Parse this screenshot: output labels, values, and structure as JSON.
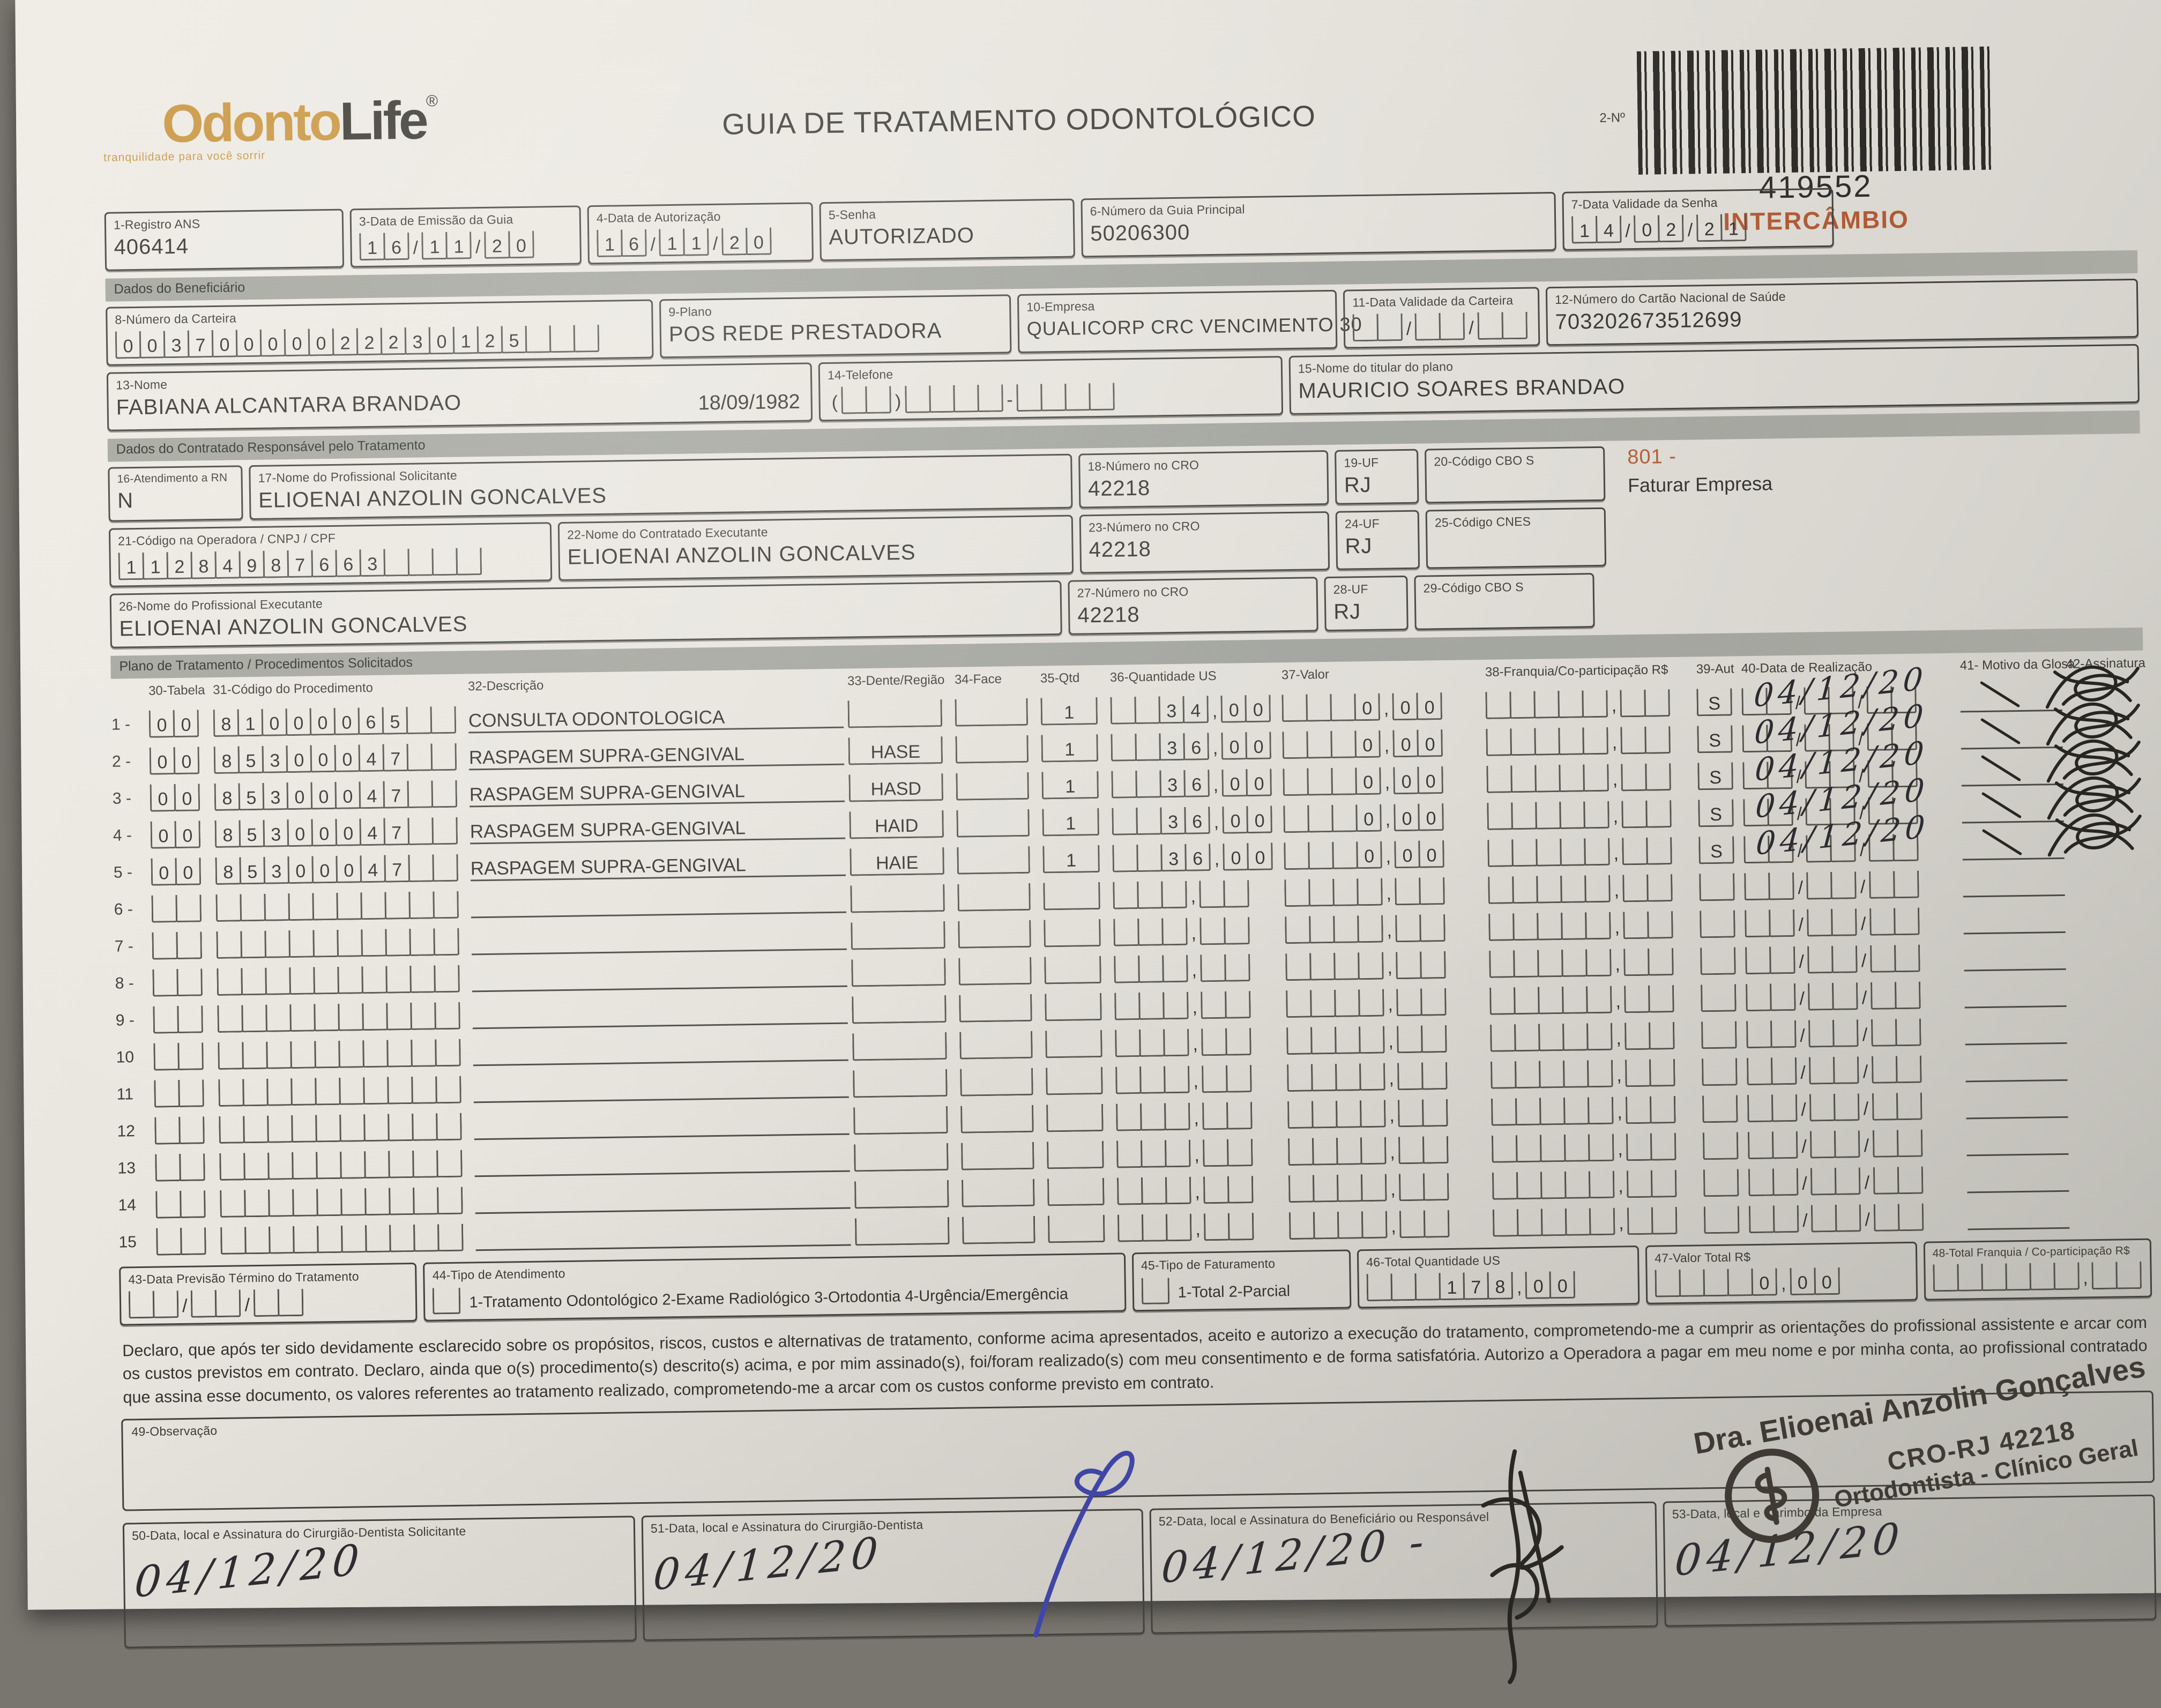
{
  "header": {
    "logo_odonto": "Odonto",
    "logo_life": "Life",
    "logo_reg": "®",
    "tagline": "tranquilidade para você sorrir",
    "title": "GUIA DE TRATAMENTO ODONTOLÓGICO",
    "barcode_label": "2-Nº",
    "guide_number": "419552",
    "guide_type": "INTERCÂMBIO"
  },
  "colors": {
    "logo_orange": "#c9953f",
    "accent_red": "#b05a36",
    "pen_blue": "#3f46ad",
    "ink": "#3b3a35"
  },
  "sections": {
    "beneficiario": "Dados do Beneficiário",
    "contratado": "Dados do Contratado Responsável pelo Tratamento",
    "plano": "Plano de Tratamento / Procedimentos Solicitados"
  },
  "fields": {
    "f1": {
      "label": "1-Registro ANS",
      "value": "406414"
    },
    "f3": {
      "label": "3-Data de Emissão da Guia",
      "value": "16/11/20"
    },
    "f4": {
      "label": "4-Data de Autorização",
      "value": "16/11/20"
    },
    "f5": {
      "label": "5-Senha",
      "value": "AUTORIZADO"
    },
    "f6": {
      "label": "6-Número da Guia Principal",
      "value": "50206300"
    },
    "f7": {
      "label": "7-Data Validade da Senha",
      "value": "14/02/21"
    },
    "f8": {
      "label": "8-Número da Carteira",
      "value": "00370000022230125   "
    },
    "f9": {
      "label": "9-Plano",
      "value": "POS REDE PRESTADORA"
    },
    "f10": {
      "label": "10-Empresa",
      "value": "QUALICORP CRC VENCIMENTO 30"
    },
    "f11": {
      "label": "11-Data Validade da Carteira",
      "value": "  /  /  "
    },
    "f12": {
      "label": "12-Número do Cartão Nacional de Saúde",
      "value": "703202673512699"
    },
    "f13": {
      "label": "13-Nome",
      "value": "FABIANA ALCANTARA BRANDAO",
      "birthdate": "18/09/1982"
    },
    "f14": {
      "label": "14-Telefone",
      "value": "(  )    -    "
    },
    "f15": {
      "label": "15-Nome do titular do plano",
      "value": "MAURICIO SOARES BRANDAO"
    },
    "f16": {
      "label": "16-Atendimento a RN",
      "value": "N"
    },
    "f17": {
      "label": "17-Nome do Profissional Solicitante",
      "value": "ELIOENAI ANZOLIN GONCALVES"
    },
    "f18": {
      "label": "18-Número no CRO",
      "value": "42218"
    },
    "f19": {
      "label": "19-UF",
      "value": "RJ"
    },
    "f20": {
      "label": "20-Código CBO S",
      "value": ""
    },
    "f21": {
      "label": "21-Código na Operadora / CNPJ / CPF",
      "value": "11284987663    "
    },
    "f22": {
      "label": "22-Nome do Contratado Executante",
      "value": "ELIOENAI ANZOLIN GONCALVES"
    },
    "f23": {
      "label": "23-Número no CRO",
      "value": "42218"
    },
    "f24": {
      "label": "24-UF",
      "value": "RJ"
    },
    "f25": {
      "label": "25-Código CNES",
      "value": ""
    },
    "f26": {
      "label": "26-Nome do Profissional Executante",
      "value": "ELIOENAI ANZOLIN GONCALVES"
    },
    "f27": {
      "label": "27-Número no CRO",
      "value": "42218"
    },
    "f28": {
      "label": "28-UF",
      "value": "RJ"
    },
    "f29": {
      "label": "29-Código CBO S",
      "value": ""
    }
  },
  "billing_note": {
    "code": "801 -",
    "text": "Faturar Empresa"
  },
  "table": {
    "headers": {
      "h30": "30-Tabela",
      "h31": "31-Código do Procedimento",
      "h32": "32-Descrição",
      "h33": "33-Dente/Região",
      "h34": "34-Face",
      "h35": "35-Qtd",
      "h36": "36-Quantidade US",
      "h37": "37-Valor",
      "h38": "38-Franquia/Co-participação R$",
      "h39": "39-Aut",
      "h40": "40-Data de Realização",
      "h41": "41- Motivo da Glosa",
      "h42": "42-Assinatura"
    },
    "rows": [
      {
        "n": "1 -",
        "tabela": "00",
        "codigo": "81000065  ",
        "descricao": "CONSULTA ODONTOLOGICA",
        "dente": "",
        "face": "",
        "qtd": "1",
        "qtd_us": "  34,00",
        "valor": "   0,00",
        "franquia": "     ,  ",
        "aut": "S",
        "data_comb": "  /  /  ",
        "data_hand": "04/12/20",
        "signed": true
      },
      {
        "n": "2 -",
        "tabela": "00",
        "codigo": "85300047  ",
        "descricao": "RASPAGEM SUPRA-GENGIVAL",
        "dente": "HASE",
        "face": "",
        "qtd": "1",
        "qtd_us": "  36,00",
        "valor": "   0,00",
        "franquia": "     ,  ",
        "aut": "S",
        "data_comb": "  /  /  ",
        "data_hand": "04/12/20",
        "signed": true
      },
      {
        "n": "3 -",
        "tabela": "00",
        "codigo": "85300047  ",
        "descricao": "RASPAGEM SUPRA-GENGIVAL",
        "dente": "HASD",
        "face": "",
        "qtd": "1",
        "qtd_us": "  36,00",
        "valor": "   0,00",
        "franquia": "     ,  ",
        "aut": "S",
        "data_comb": "  /  /  ",
        "data_hand": "04/12/20",
        "signed": true
      },
      {
        "n": "4 -",
        "tabela": "00",
        "codigo": "85300047  ",
        "descricao": "RASPAGEM SUPRA-GENGIVAL",
        "dente": "HAID",
        "face": "",
        "qtd": "1",
        "qtd_us": "  36,00",
        "valor": "   0,00",
        "franquia": "     ,  ",
        "aut": "S",
        "data_comb": "  /  /  ",
        "data_hand": "04/12/20",
        "signed": true
      },
      {
        "n": "5 -",
        "tabela": "00",
        "codigo": "85300047  ",
        "descricao": "RASPAGEM SUPRA-GENGIVAL",
        "dente": "HAIE",
        "face": "",
        "qtd": "1",
        "qtd_us": "  36,00",
        "valor": "   0,00",
        "franquia": "     ,  ",
        "aut": "S",
        "data_comb": "  /  /  ",
        "data_hand": "04/12/20",
        "signed": true
      },
      {
        "n": "6 -",
        "tabela": "  ",
        "codigo": "          ",
        "descricao": "",
        "dente": "",
        "face": "",
        "qtd": "",
        "qtd_us": "   ,  ",
        "valor": "    ,  ",
        "franquia": "     ,  ",
        "aut": "",
        "data_comb": "  /  /  ",
        "data_hand": "",
        "signed": false
      },
      {
        "n": "7 -",
        "tabela": "  ",
        "codigo": "          ",
        "descricao": "",
        "dente": "",
        "face": "",
        "qtd": "",
        "qtd_us": "   ,  ",
        "valor": "    ,  ",
        "franquia": "     ,  ",
        "aut": "",
        "data_comb": "  /  /  ",
        "data_hand": "",
        "signed": false
      },
      {
        "n": "8 -",
        "tabela": "  ",
        "codigo": "          ",
        "descricao": "",
        "dente": "",
        "face": "",
        "qtd": "",
        "qtd_us": "   ,  ",
        "valor": "    ,  ",
        "franquia": "     ,  ",
        "aut": "",
        "data_comb": "  /  /  ",
        "data_hand": "",
        "signed": false
      },
      {
        "n": "9 -",
        "tabela": "  ",
        "codigo": "          ",
        "descricao": "",
        "dente": "",
        "face": "",
        "qtd": "",
        "qtd_us": "   ,  ",
        "valor": "    ,  ",
        "franquia": "     ,  ",
        "aut": "",
        "data_comb": "  /  /  ",
        "data_hand": "",
        "signed": false
      },
      {
        "n": "10",
        "tabela": "  ",
        "codigo": "          ",
        "descricao": "",
        "dente": "",
        "face": "",
        "qtd": "",
        "qtd_us": "   ,  ",
        "valor": "    ,  ",
        "franquia": "     ,  ",
        "aut": "",
        "data_comb": "  /  /  ",
        "data_hand": "",
        "signed": false
      },
      {
        "n": "11",
        "tabela": "  ",
        "codigo": "          ",
        "descricao": "",
        "dente": "",
        "face": "",
        "qtd": "",
        "qtd_us": "   ,  ",
        "valor": "    ,  ",
        "franquia": "     ,  ",
        "aut": "",
        "data_comb": "  /  /  ",
        "data_hand": "",
        "signed": false
      },
      {
        "n": "12",
        "tabela": "  ",
        "codigo": "          ",
        "descricao": "",
        "dente": "",
        "face": "",
        "qtd": "",
        "qtd_us": "   ,  ",
        "valor": "    ,  ",
        "franquia": "     ,  ",
        "aut": "",
        "data_comb": "  /  /  ",
        "data_hand": "",
        "signed": false
      },
      {
        "n": "13",
        "tabela": "  ",
        "codigo": "          ",
        "descricao": "",
        "dente": "",
        "face": "",
        "qtd": "",
        "qtd_us": "   ,  ",
        "valor": "    ,  ",
        "franquia": "     ,  ",
        "aut": "",
        "data_comb": "  /  /  ",
        "data_hand": "",
        "signed": false
      },
      {
        "n": "14",
        "tabela": "  ",
        "codigo": "          ",
        "descricao": "",
        "dente": "",
        "face": "",
        "qtd": "",
        "qtd_us": "   ,  ",
        "valor": "    ,  ",
        "franquia": "     ,  ",
        "aut": "",
        "data_comb": "  /  /  ",
        "data_hand": "",
        "signed": false
      },
      {
        "n": "15",
        "tabela": "  ",
        "codigo": "          ",
        "descricao": "",
        "dente": "",
        "face": "",
        "qtd": "",
        "qtd_us": "   ,  ",
        "valor": "    ,  ",
        "franquia": "     ,  ",
        "aut": "",
        "data_comb": "  /  /  ",
        "data_hand": "",
        "signed": false
      }
    ]
  },
  "totals": {
    "f43": {
      "label": "43-Data Previsão Término do Tratamento",
      "value": "  /  /  "
    },
    "f44": {
      "label": "44-Tipo de Atendimento",
      "options": "1-Tratamento Odontológico  2-Exame Radiológico  3-Ortodontia  4-Urgência/Emergência"
    },
    "f45": {
      "label": "45-Tipo de Faturamento",
      "options": "1-Total  2-Parcial"
    },
    "f46": {
      "label": "46-Total Quantidade US",
      "value": "   178,00"
    },
    "f47": {
      "label": "47-Valor Total R$",
      "value": "    0,00"
    },
    "f48": {
      "label": "48-Total Franquia / Co-participação R$",
      "value": "      ,  "
    }
  },
  "declaration": "Declaro, que após ter sido devidamente esclarecido sobre os propósitos, riscos, custos e alternativas de tratamento, conforme acima apresentados, aceito e autorizo a execução do tratamento, comprometendo-me a cumprir as orientações do profissional assistente e arcar com os custos previstos em contrato. Declaro, ainda que o(s) procedimento(s) descrito(s) acima, e por mim assinado(s), foi/foram realizado(s) com meu consentimento e de forma satisfatória. Autorizo a Operadora a pagar em meu nome e por minha conta, ao profissional contratado que assina esse documento, os valores referentes ao tratamento realizado, comprometendo-me a arcar com os custos conforme previsto em contrato.",
  "bottom": {
    "f49": {
      "label": "49-Observação"
    },
    "f50": {
      "label": "50-Data, local e Assinatura do Cirurgião-Dentista Solicitante",
      "hand": "04/12/20"
    },
    "f51": {
      "label": "51-Data, local e Assinatura do Cirurgião-Dentista",
      "hand": "04/12/20"
    },
    "f52": {
      "label": "52-Data, local e Assinatura do Beneficiário ou Responsável",
      "hand": "04/12/20 -"
    },
    "f53": {
      "label": "53-Data, local e Carimbo da Empresa",
      "hand": "04/12/20"
    }
  },
  "stamp": {
    "name": "Dra. Elioenai Anzolin Gonçalves",
    "cro": "CRO-RJ 42218",
    "specialty": "Ortodontista - Clínico Geral"
  }
}
